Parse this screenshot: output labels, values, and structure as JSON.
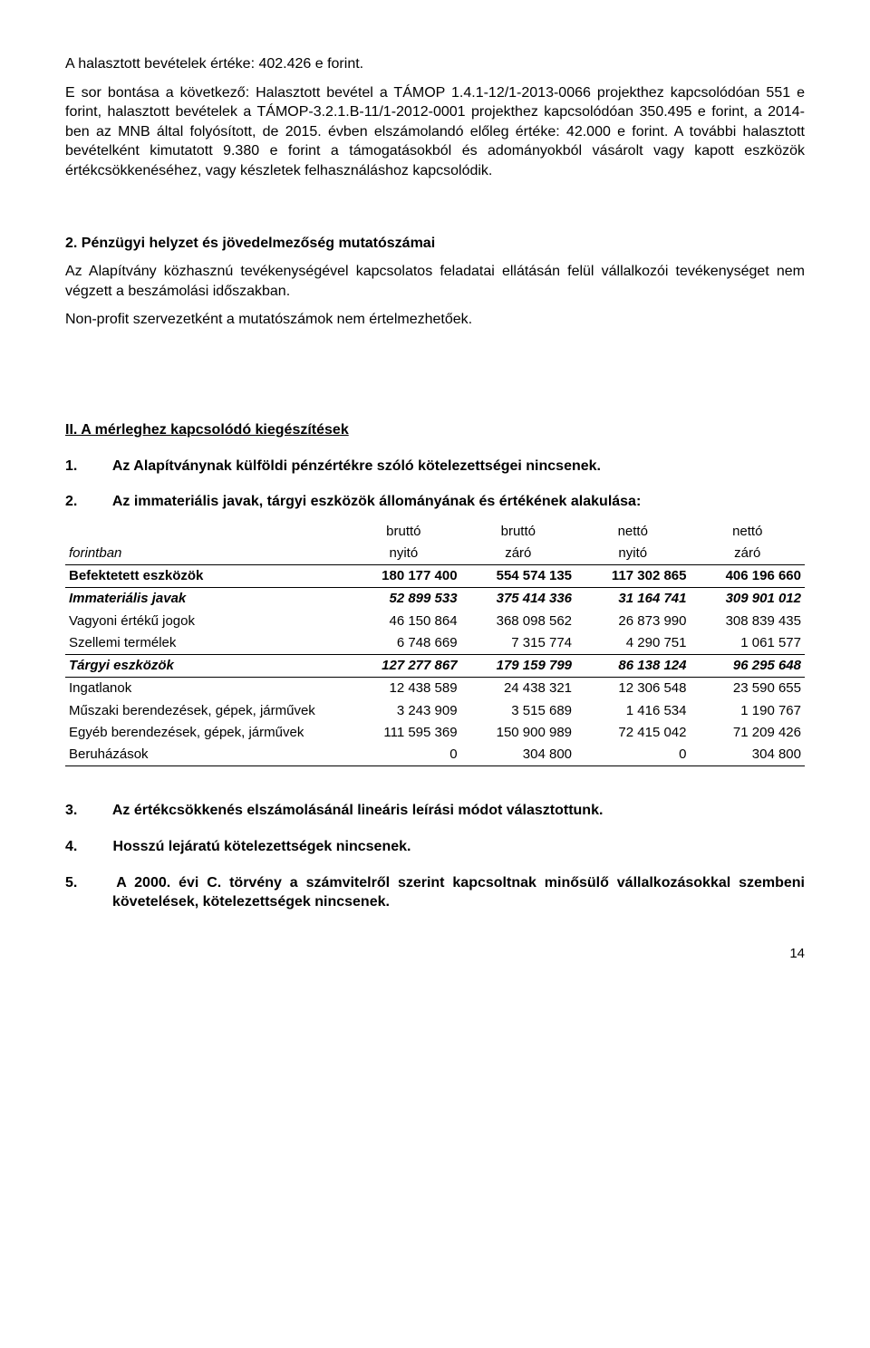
{
  "p1": "A halasztott bevételek értéke: 402.426 e forint.",
  "p2": "E sor bontása a következő: Halasztott bevétel a TÁMOP 1.4.1-12/1-2013-0066 projekthez kapcsolódóan 551 e forint, halasztott bevételek a TÁMOP-3.2.1.B-11/1-2012-0001 projekthez kapcsolódóan 350.495 e forint, a 2014-ben az MNB által folyósított, de 2015. évben elszámolandó előleg értéke: 42.000 e forint. A további halasztott bevételként kimutatott 9.380 e forint a támogatásokból és adományokból vásárolt vagy kapott eszközök értékcsökkenéséhez, vagy készletek felhasználáshoz kapcsolódik.",
  "s2_title": "2. Pénzügyi helyzet és jövedelmezőség mutatószámai",
  "p3": "Az Alapítvány közhasznú tevékenységével kapcsolatos feladatai ellátásán felül vállalkozói tevékenységet nem végzett a beszámolási időszakban.",
  "p4": "Non-profit szervezetként a mutatószámok nem értelmezhetőek.",
  "sII_title": "II. A mérleghez kapcsolódó kiegészítések",
  "sII_1": "Az Alapítványnak külföldi pénzértékre szóló kötelezettségei nincsenek.",
  "sII_2": "Az immateriális javak, tárgyi eszközök állományának és értékének alakulása:",
  "tbl": {
    "unit_label": "forintban",
    "hdr1": [
      "bruttó",
      "bruttó",
      "nettó",
      "nettó"
    ],
    "hdr2": [
      "nyitó",
      "záró",
      "nyitó",
      "záró"
    ],
    "rows": [
      {
        "label": "Befektetett eszközök",
        "cls": "bold",
        "indent": false,
        "vals": [
          "180 177 400",
          "554 574 135",
          "117 302 865",
          "406 196 660"
        ]
      },
      {
        "label": "Immateriális javak",
        "cls": "bi",
        "indent": false,
        "vals": [
          "52 899 533",
          "375 414 336",
          "31 164 741",
          "309 901 012"
        ]
      },
      {
        "label": "Vagyoni értékű jogok",
        "cls": "",
        "indent": true,
        "vals": [
          "46 150 864",
          "368 098 562",
          "26 873 990",
          "308 839 435"
        ]
      },
      {
        "label": "Szellemi termélek",
        "cls": "",
        "indent": true,
        "vals": [
          "6 748 669",
          "7 315 774",
          "4 290 751",
          "1 061 577"
        ]
      },
      {
        "label": "Tárgyi eszközök",
        "cls": "bi",
        "indent": false,
        "vals": [
          "127 277 867",
          "179 159 799",
          "86 138 124",
          "96 295 648"
        ]
      },
      {
        "label": "Ingatlanok",
        "cls": "",
        "indent": false,
        "vals": [
          "12 438 589",
          "24 438 321",
          "12 306 548",
          "23 590 655"
        ]
      },
      {
        "label": "Műszaki berendezések, gépek, járművek",
        "cls": "",
        "indent": false,
        "vals": [
          "3 243 909",
          "3 515 689",
          "1 416 534",
          "1 190 767"
        ]
      },
      {
        "label": "Egyéb berendezések, gépek, járművek",
        "cls": "",
        "indent": false,
        "vals": [
          "111 595 369",
          "150 900 989",
          "72 415 042",
          "71 209 426"
        ]
      },
      {
        "label": "Beruházások",
        "cls": "",
        "indent": false,
        "vals": [
          "0",
          "304 800",
          "0",
          "304 800"
        ]
      }
    ]
  },
  "sII_3": "Az értékcsökkenés elszámolásánál lineáris leírási módot választottunk.",
  "sII_4": "Hosszú lejáratú kötelezettségek nincsenek.",
  "sII_5": "A 2000. évi C. törvény a számvitelről szerint kapcsoltnak minősülő vállalkozásokkal szembeni követelések, kötelezettségek nincsenek.",
  "pagenum": "14",
  "enum": {
    "n1": "1.",
    "n2": "2.",
    "n3": "3.",
    "n4": "4.",
    "n5": "5."
  }
}
